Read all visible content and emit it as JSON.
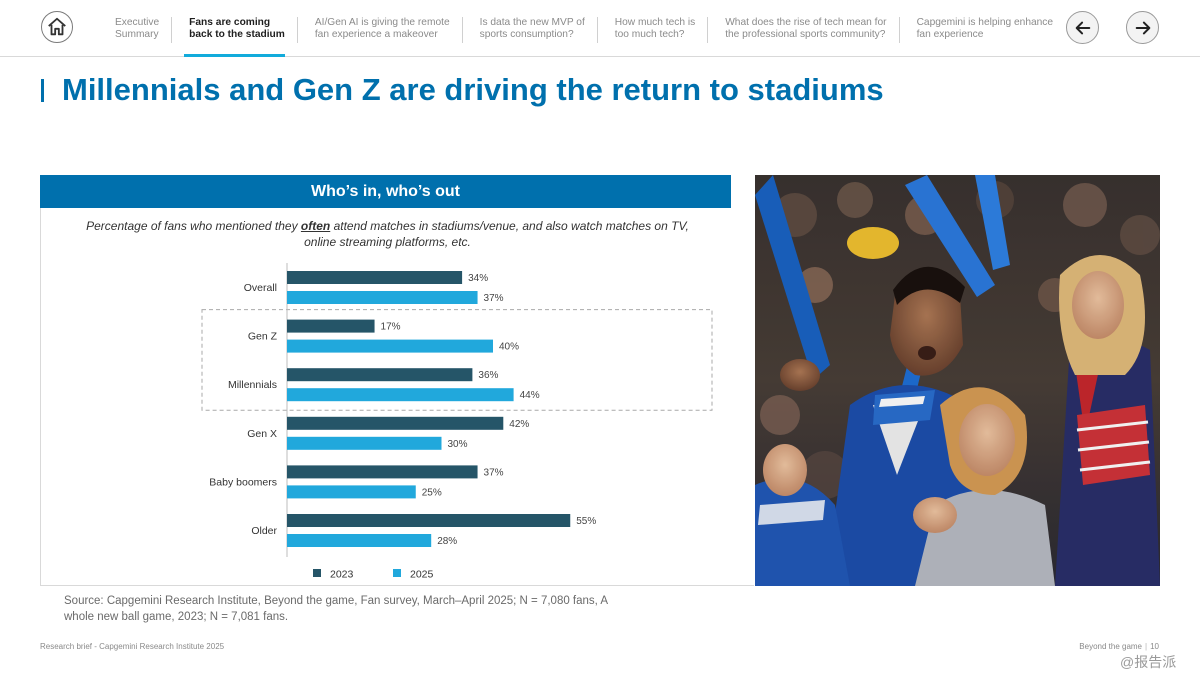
{
  "nav": {
    "tabs": [
      {
        "line1": "Executive",
        "line2": "Summary",
        "active": false
      },
      {
        "line1": "Fans are coming",
        "line2": "back to the stadium",
        "active": true
      },
      {
        "line1": "AI/Gen AI is giving the remote",
        "line2": "fan experience a makeover",
        "active": false
      },
      {
        "line1": "Is data the new MVP of",
        "line2": "sports consumption?",
        "active": false
      },
      {
        "line1": "How much tech is",
        "line2": "too much tech?",
        "active": false
      },
      {
        "line1": "What does the rise of tech mean for",
        "line2": "the professional sports community?",
        "active": false
      },
      {
        "line1": "Capgemini is helping enhance",
        "line2": "fan experience",
        "active": false
      }
    ],
    "home_icon": "home-icon",
    "prev_icon": "arrow-left-icon",
    "next_icon": "arrow-right-icon"
  },
  "page": {
    "title": "Millennials and Gen Z are driving the return to stadiums"
  },
  "chart_header": "Who’s in, who’s out",
  "chart_subtitle": {
    "before": "Percentage of fans who mentioned they ",
    "emphasis": "often",
    "after": " attend matches in stadiums/venue, and also watch matches on TV, online streaming platforms, etc."
  },
  "chart_data": {
    "type": "bar",
    "orientation": "horizontal",
    "categories": [
      "Overall",
      "Gen Z",
      "Millennials",
      "Gen X",
      "Baby boomers",
      "Older"
    ],
    "series": [
      {
        "name": "2023",
        "values": [
          34,
          17,
          36,
          42,
          37,
          55
        ],
        "color": "#255568"
      },
      {
        "name": "2025",
        "values": [
          37,
          40,
          44,
          30,
          25,
          28
        ],
        "color": "#21a8dc"
      }
    ],
    "value_suffix": "%",
    "xlim": [
      0,
      100
    ],
    "highlighted_categories": [
      "Gen Z",
      "Millennials"
    ],
    "legend_position": "bottom",
    "grid": false
  },
  "source": "Source: Capgemini Research Institute, Beyond the game, Fan survey, March–April 2025; N = 7,080 fans, A whole new ball game, 2023; N = 7,081 fans.",
  "footer": {
    "left": "Research brief - Capgemini Research Institute 2025",
    "right": "Beyond the game",
    "page_number": "10"
  },
  "watermark": "@报告派",
  "colors": {
    "brand_blue": "#0070ad",
    "accent_cyan": "#12abdb"
  }
}
